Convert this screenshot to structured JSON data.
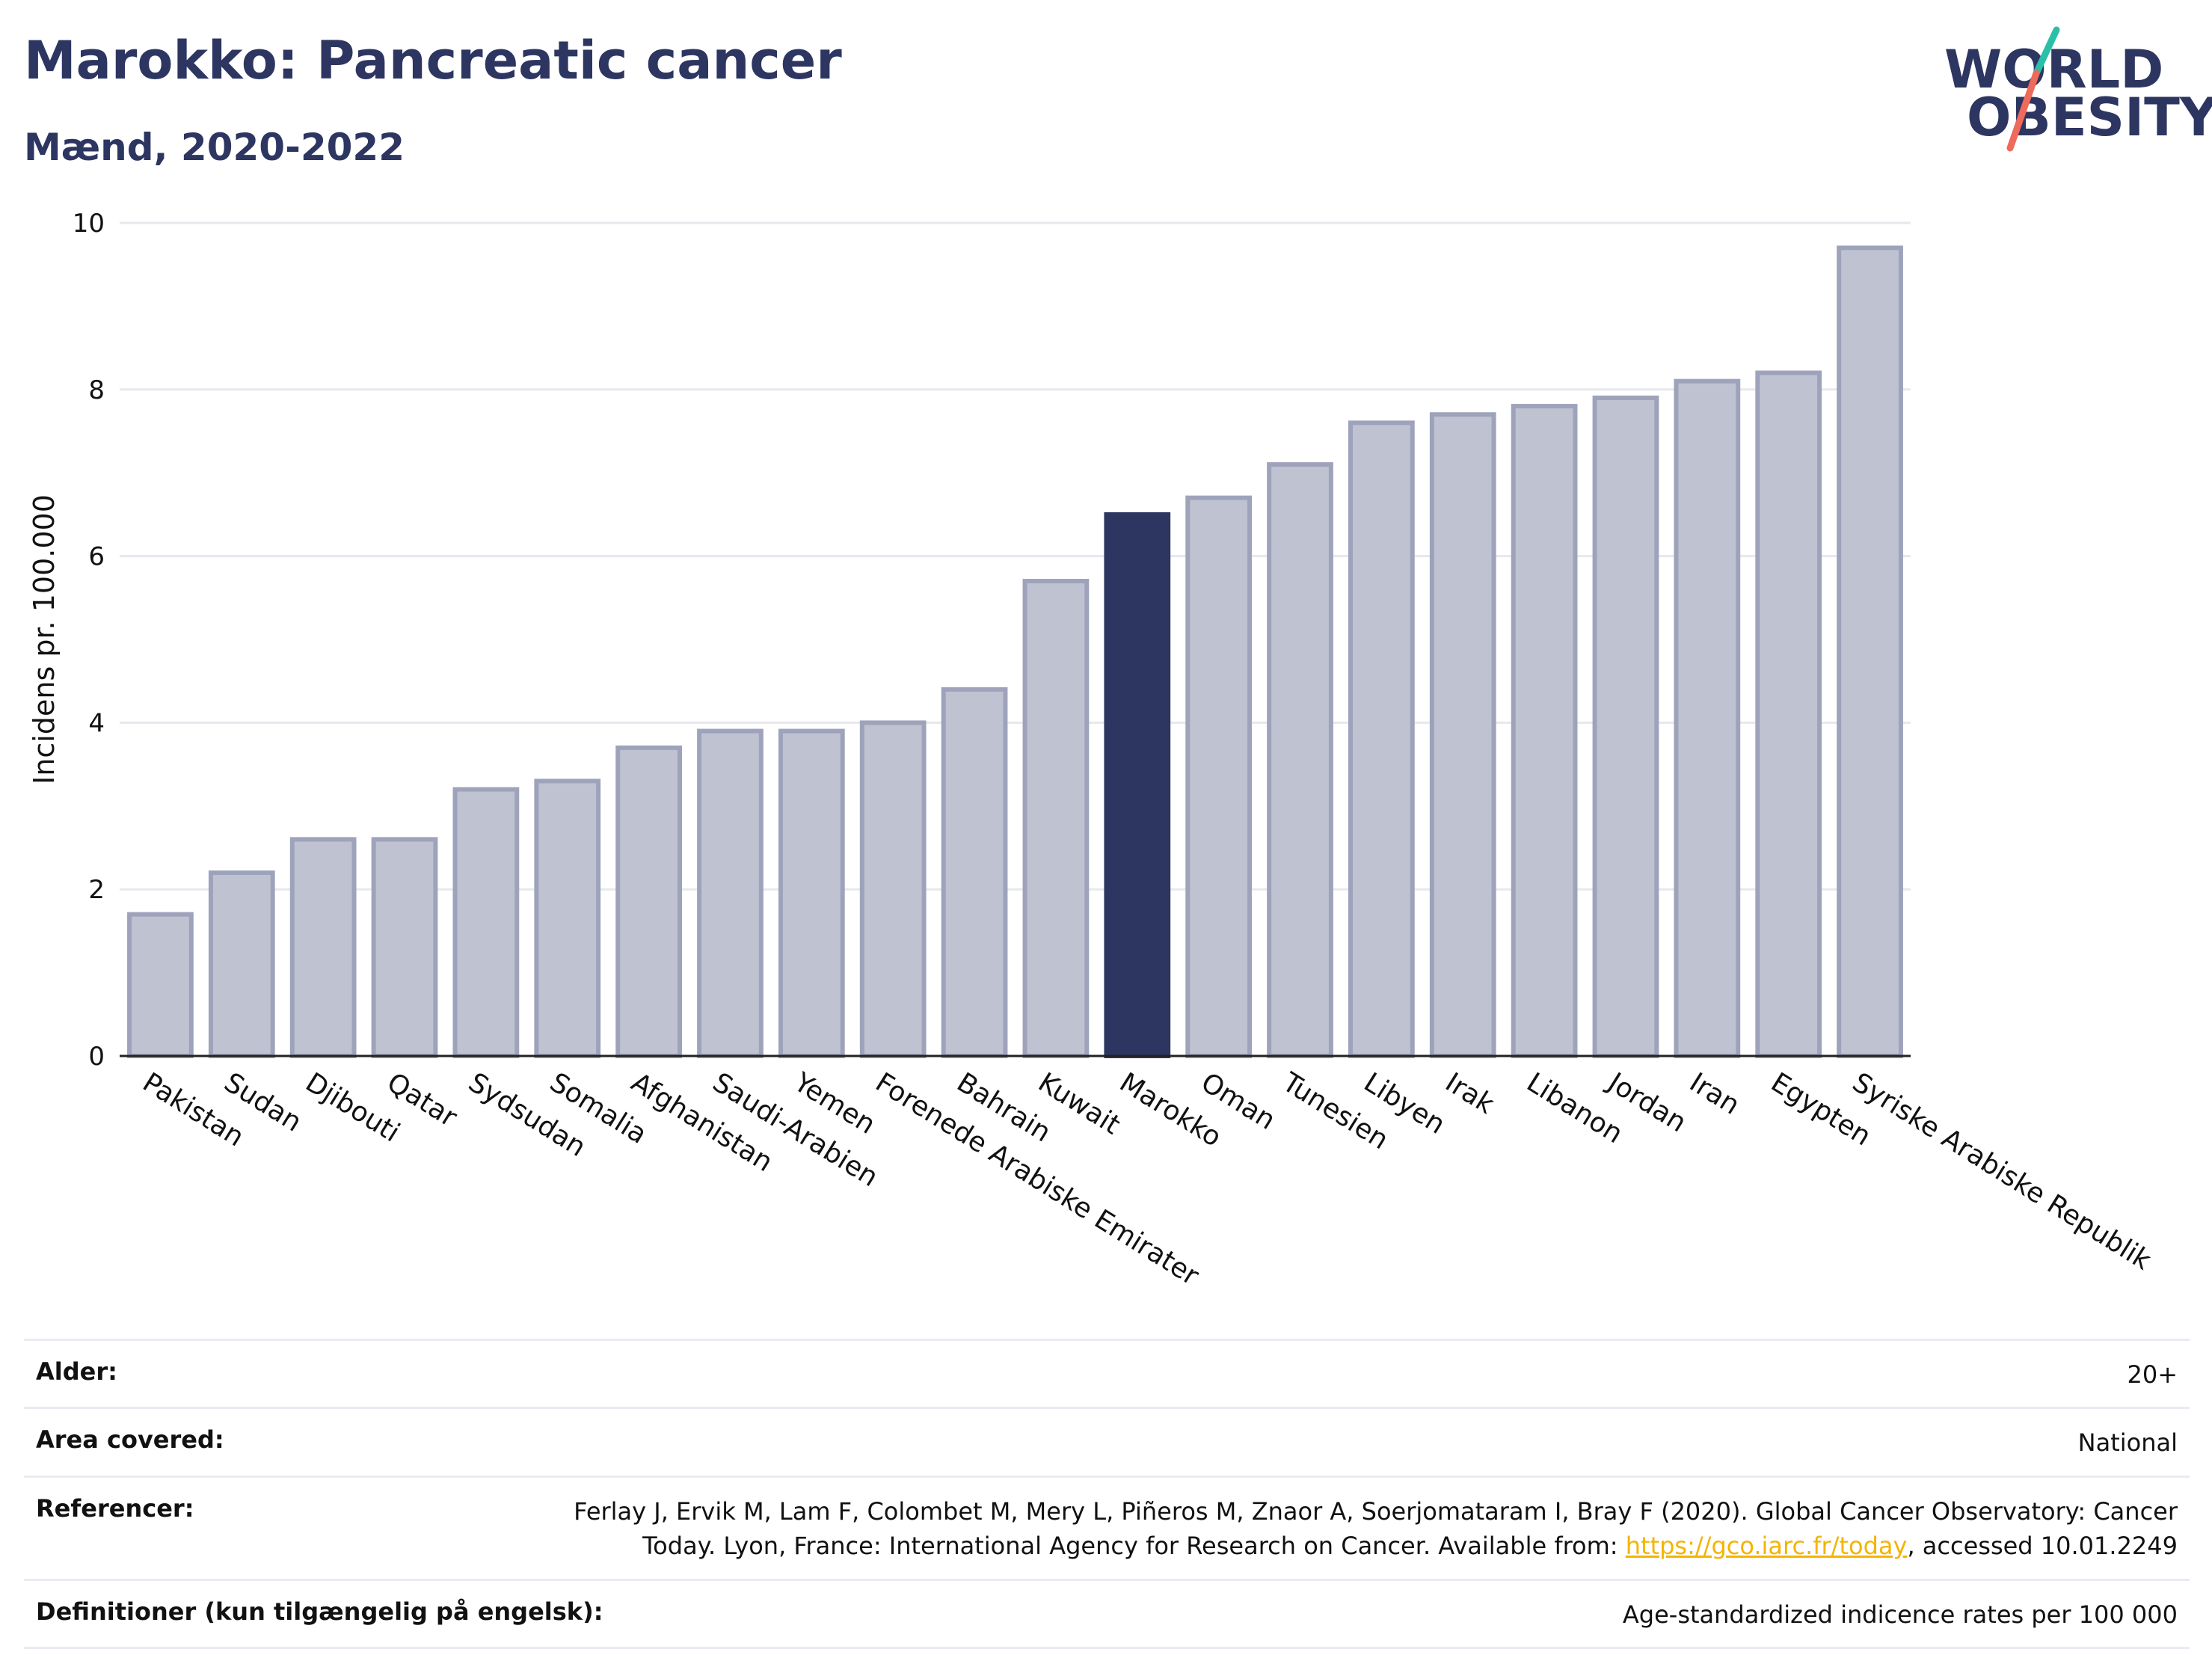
{
  "header": {
    "title": "Marokko: Pancreatic cancer",
    "subtitle": "Mænd, 2020-2022"
  },
  "logo": {
    "line1": "WORLD",
    "line2": "OBESITY",
    "accent_colors": [
      "#2bbfa8",
      "#ee6a5b"
    ]
  },
  "chart_data": {
    "type": "bar",
    "ylabel": "Incidens pr. 100.000",
    "ylim": [
      0,
      10
    ],
    "yticks": [
      0,
      2,
      4,
      6,
      8,
      10
    ],
    "grid": true,
    "highlight": "Marokko",
    "colors": {
      "bar": "#bfc3d1",
      "bar_edge": "#9ea3bb",
      "highlight": "#2d3561"
    },
    "categories": [
      "Pakistan",
      "Sudan",
      "Djibouti",
      "Qatar",
      "Sydsudan",
      "Somalia",
      "Afghanistan",
      "Saudi-Arabien",
      "Yemen",
      "Forenede Arabiske Emirater",
      "Bahrain",
      "Kuwait",
      "Marokko",
      "Oman",
      "Tunesien",
      "Libyen",
      "Irak",
      "Libanon",
      "Jordan",
      "Iran",
      "Egypten",
      "Syriske Arabiske Republik"
    ],
    "values": [
      1.7,
      2.2,
      2.6,
      2.6,
      3.2,
      3.3,
      3.7,
      3.9,
      3.9,
      4.0,
      4.4,
      5.7,
      6.5,
      6.7,
      7.1,
      7.6,
      7.7,
      7.8,
      7.9,
      8.1,
      8.2,
      9.7
    ]
  },
  "info": {
    "age_label": "Alder:",
    "age_value": "20+",
    "area_label": "Area covered:",
    "area_value": "National",
    "ref_label": "Referencer:",
    "ref_text_1": "Ferlay J, Ervik M, Lam F, Colombet M, Mery L, Piñeros M, Znaor A, Soerjomataram I, Bray F (2020). Global Cancer Observatory: Cancer Today. Lyon, France: International Agency for Research on Cancer. Available from: ",
    "ref_link": "https://gco.iarc.fr/today",
    "ref_text_2": ", accessed 10.01.2249",
    "def_label": "Definitioner (kun tilgængelig på engelsk):",
    "def_value": "Age-standardized indicence rates per 100 000"
  }
}
